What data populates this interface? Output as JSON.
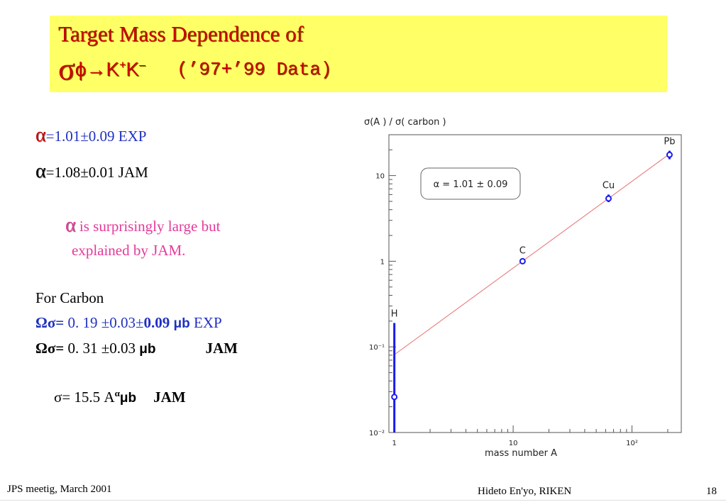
{
  "slide": {
    "title_line1": "Target Mass Dependence of",
    "title_sigma": "σ",
    "title_reaction": "ϕ→K",
    "title_plus": "+",
    "title_k2": "K",
    "title_minus": "–",
    "title_data": "(’97+’99 Data)"
  },
  "left": {
    "alpha_symbol": "α",
    "exp_value": "=1.01±0.09  EXP",
    "jam_value": "=1.08±0.01  JAM",
    "note_rest1": " is surprisingly large but",
    "note_line2": "explained by JAM.",
    "for_carbon": "For Carbon",
    "exp_label": "Ωσ=",
    "exp_num": " 0. 19   ±0.03±",
    "exp_bold": "0.09 ",
    "exp_unit": "μb",
    "exp_tag": "  EXP",
    "jam_label": "Ωσ=",
    "jam_num": " 0. 31   ±0.03 ",
    "jam_unit": "μb",
    "jam_tag": "JAM",
    "formula_prefix": "σ= 15.5 A",
    "formula_sup": "α",
    "formula_unit": "μb",
    "formula_tag": "JAM"
  },
  "footer": {
    "left": "JPS meetig, March 2001",
    "center": "Hideto En'yo, RIKEN",
    "page": "18"
  },
  "colors": {
    "title_bg": "#ffff66",
    "title_text": "#cc0000",
    "blue_text": "#2030c0",
    "pink_text": "#e6399a",
    "marker": "#1a1aee",
    "fit_line": "#e87070"
  },
  "chart_data": {
    "type": "scatter",
    "title": "σ(A ) / σ( carbon )",
    "xlabel": "mass number  A",
    "ylabel": "",
    "xscale": "log",
    "yscale": "log",
    "xlim": [
      0.9,
      260
    ],
    "ylim": [
      0.01,
      30
    ],
    "xticks": [
      {
        "value": 1,
        "label": "1"
      },
      {
        "value": 10,
        "label": "10"
      },
      {
        "value": 100,
        "label": "10²"
      }
    ],
    "yticks": [
      {
        "value": 0.01,
        "label": "10⁻²"
      },
      {
        "value": 0.1,
        "label": "10⁻¹"
      },
      {
        "value": 1,
        "label": "1"
      },
      {
        "value": 10,
        "label": "10"
      }
    ],
    "points": [
      {
        "label": "H",
        "x": 1,
        "y": 0.026,
        "ylow": 0.01,
        "yhigh": 0.19
      },
      {
        "label": "C",
        "x": 12,
        "y": 1.0,
        "ylow": 0.96,
        "yhigh": 1.04
      },
      {
        "label": "Cu",
        "x": 63.5,
        "y": 5.4,
        "ylow": 4.9,
        "yhigh": 6.0
      },
      {
        "label": "Pb",
        "x": 207,
        "y": 17.5,
        "ylow": 15.5,
        "yhigh": 19.5
      }
    ],
    "fit": {
      "alpha": 1.01,
      "x": [
        1,
        207
      ],
      "y": [
        0.081,
        17.9
      ]
    },
    "annotation": "α = 1.01 ± 0.09",
    "grid": false
  }
}
